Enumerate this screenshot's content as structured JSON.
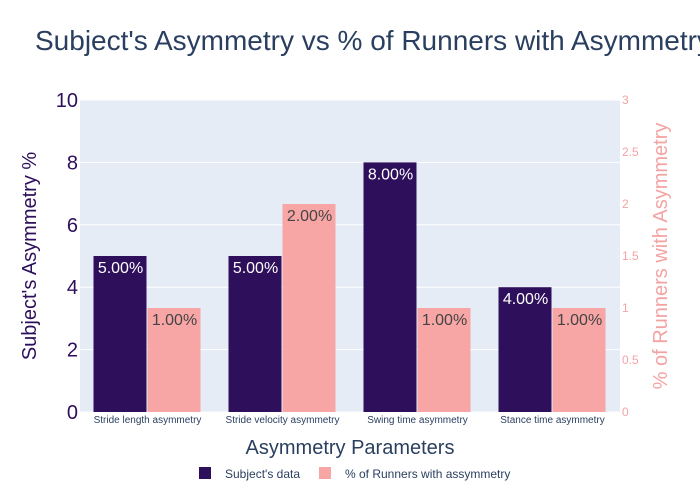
{
  "chart_data": {
    "type": "bar",
    "title": "Subject's Asymmetry vs % of Runners with Asymmetry",
    "xlabel": "Asymmetry Parameters",
    "ylabel_left": "Subject's Asymmetry %",
    "ylabel_right": "% of Runners with Asymmetry",
    "categories": [
      "Stride length asymmetry",
      "Stride velocity asymmetry",
      "Swing time asymmetry",
      "Stance time asymmetry"
    ],
    "ylim_left": [
      0,
      10
    ],
    "ylim_right": [
      0,
      3
    ],
    "yticks_left": [
      "0",
      "2",
      "4",
      "6",
      "8",
      "10"
    ],
    "yticks_right": [
      "0",
      "0.5",
      "1",
      "1.5",
      "2",
      "2.5",
      "3"
    ],
    "grid": true,
    "legend_position": "bottom",
    "series": [
      {
        "name": "Subject's data",
        "axis": "left",
        "color": "#2e0f5b",
        "values": [
          5,
          5,
          8,
          4
        ],
        "labels": [
          "5.00%",
          "5.00%",
          "8.00%",
          "4.00%"
        ]
      },
      {
        "name": "% of Runners with assymmetry",
        "axis": "right",
        "color": "#f8a5a5",
        "values": [
          1,
          2,
          1,
          1
        ],
        "labels": [
          "1.00%",
          "2.00%",
          "1.00%",
          "1.00%"
        ]
      }
    ]
  }
}
